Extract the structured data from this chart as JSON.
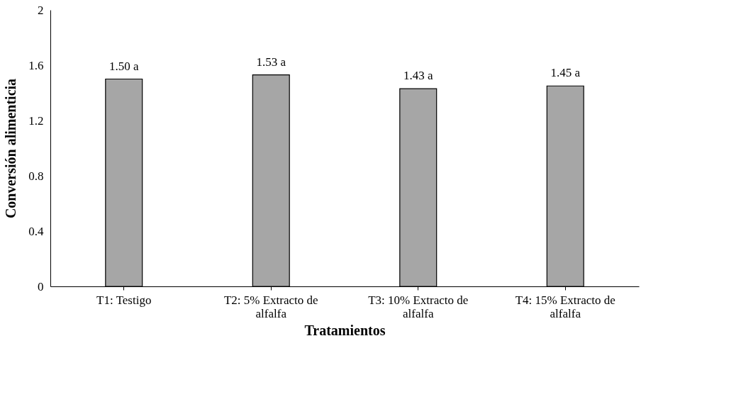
{
  "chart_data": {
    "type": "bar",
    "categories": [
      "T1: Testigo",
      "T2: 5% Extracto de alfalfa",
      "T3: 10% Extracto de alfalfa",
      "T4: 15% Extracto de alfalfa"
    ],
    "values": [
      1.5,
      1.53,
      1.43,
      1.45
    ],
    "value_labels": [
      "1.50 a",
      "1.53 a",
      "1.43 a",
      "1.45 a"
    ],
    "color": "#a6a6a6",
    "xlabel": "Tratamientos",
    "ylabel": "Conversión alimenticia",
    "ylim": [
      0,
      2
    ],
    "yticks": [
      0,
      0.4,
      0.8,
      1.2,
      1.6,
      2
    ],
    "grid": false
  }
}
